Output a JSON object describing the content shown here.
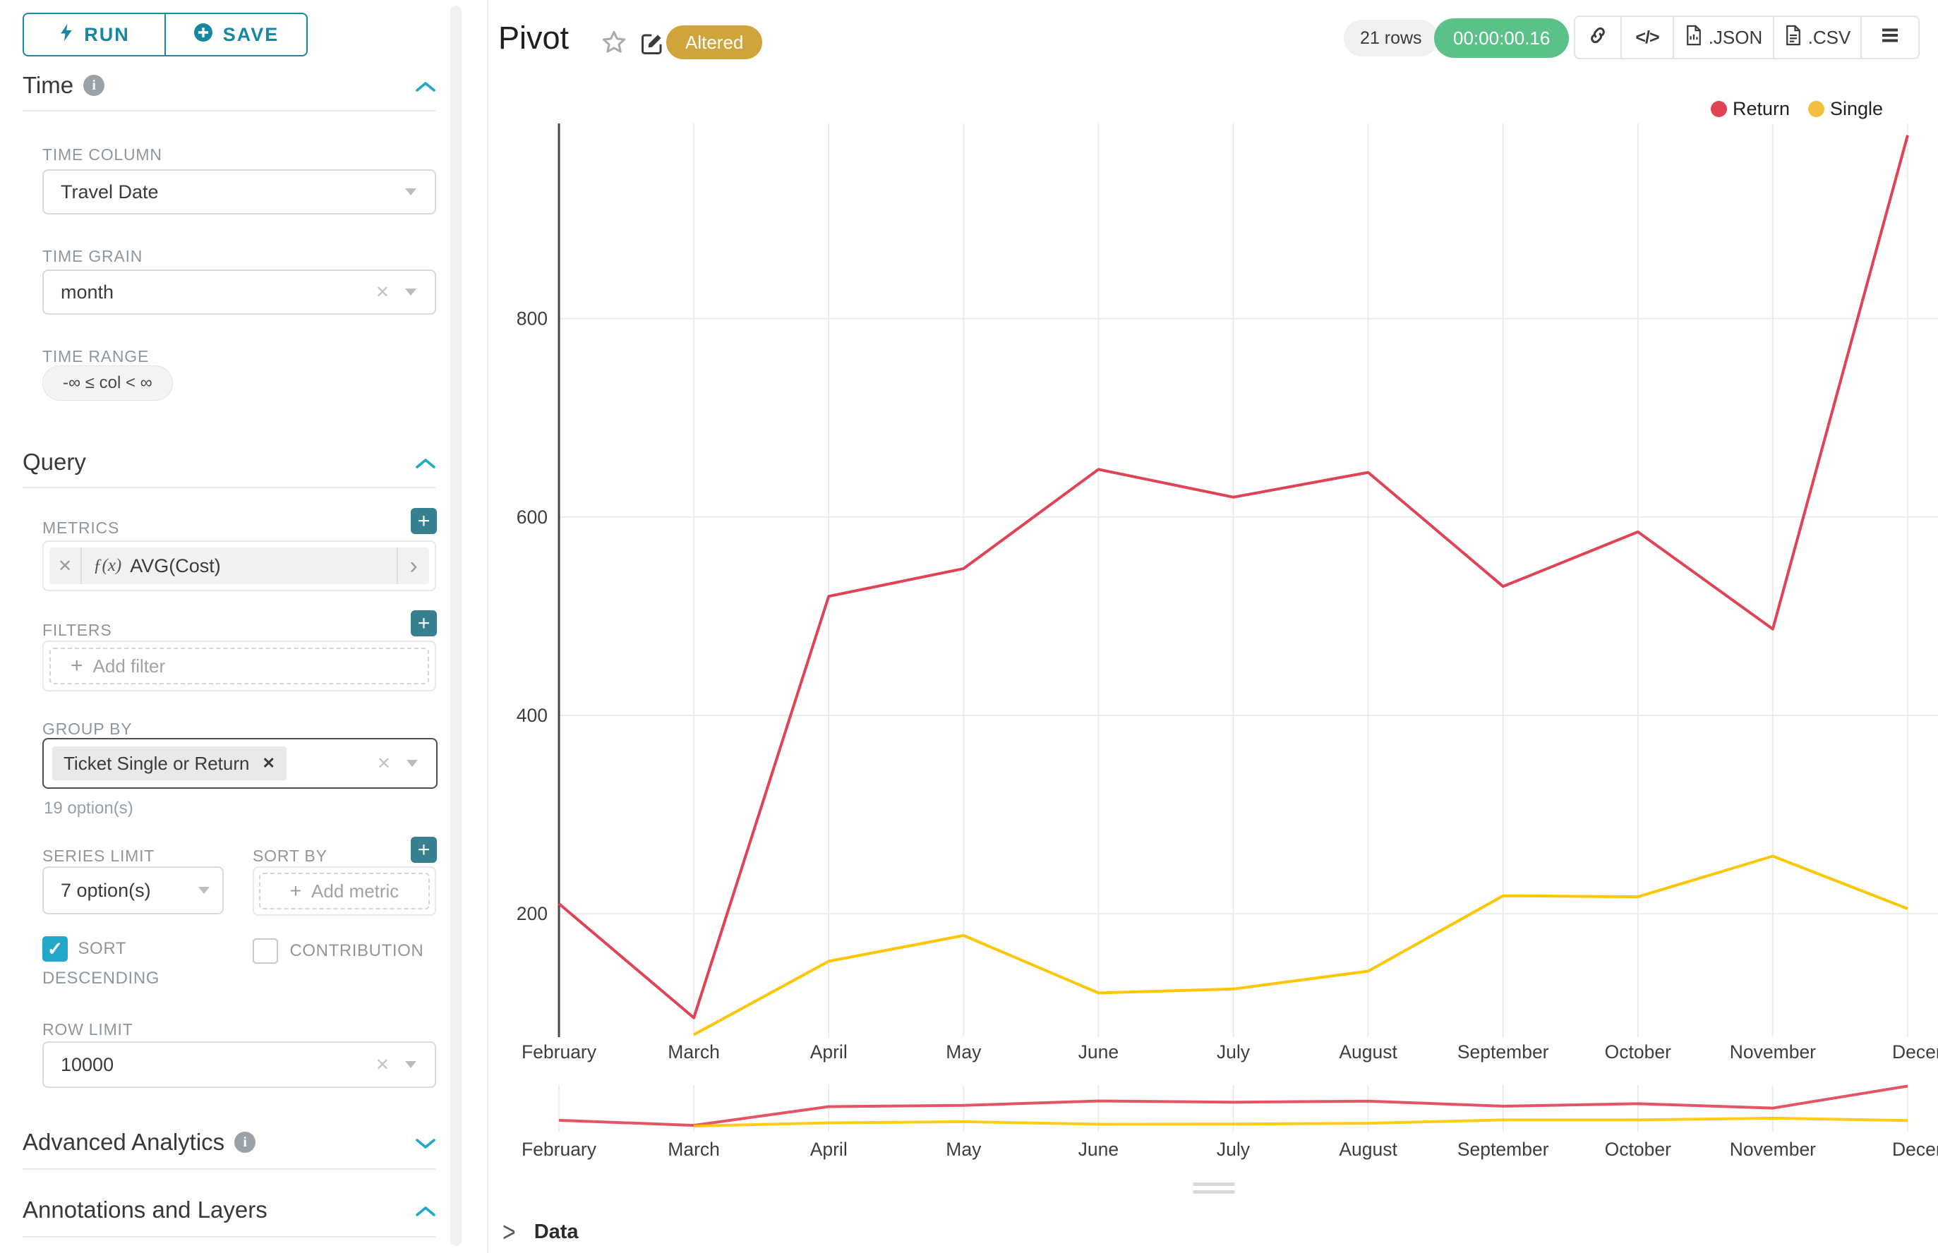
{
  "sidebar": {
    "run_label": "RUN",
    "save_label": "SAVE",
    "time_section": "Time",
    "query_section": "Query",
    "advanced_section": "Advanced Analytics",
    "annotations_section": "Annotations and Layers",
    "time_column": {
      "label": "TIME COLUMN",
      "value": "Travel Date"
    },
    "time_grain": {
      "label": "TIME GRAIN",
      "value": "month"
    },
    "time_range": {
      "label": "TIME RANGE",
      "value": "-∞ ≤ col < ∞"
    },
    "metrics": {
      "label": "METRICS",
      "fx": "ƒ(x)",
      "value": "AVG(Cost)"
    },
    "filters": {
      "label": "FILTERS",
      "placeholder": "Add filter"
    },
    "group_by": {
      "label": "GROUP BY",
      "tag": "Ticket Single or Return",
      "hint": "19 option(s)"
    },
    "series_limit": {
      "label": "SERIES LIMIT",
      "value": "7 option(s)"
    },
    "sort_by": {
      "label": "SORT BY",
      "placeholder": "Add metric"
    },
    "sort_descending": {
      "label": "SORT DESCENDING",
      "checked": true
    },
    "contribution": {
      "label": "CONTRIBUTION",
      "checked": false
    },
    "row_limit": {
      "label": "ROW LIMIT",
      "value": "10000"
    }
  },
  "header": {
    "title": "Pivot",
    "altered_badge": "Altered",
    "rows_badge": "21 rows",
    "duration_badge": "00:00:00.16",
    "export_json": ".JSON",
    "export_csv": ".CSV"
  },
  "chart_data": {
    "type": "line",
    "x": [
      "February",
      "March",
      "April",
      "May",
      "June",
      "July",
      "August",
      "September",
      "October",
      "November",
      "December"
    ],
    "series": [
      {
        "name": "Return",
        "color": "#e04355",
        "values": [
          210,
          95,
          520,
          548,
          648,
          620,
          645,
          530,
          585,
          487,
          985
        ]
      },
      {
        "name": "Single",
        "color": "#fcc700",
        "values": [
          null,
          78,
          152,
          178,
          120,
          124,
          142,
          218,
          217,
          258,
          205
        ]
      }
    ],
    "title": "Pivot",
    "xlabel": "",
    "ylabel": "",
    "yticks": [
      200,
      400,
      600,
      800
    ],
    "ylim": [
      60,
      1000
    ],
    "grid": true,
    "legend_position": "top-right",
    "has_preview_strip": true
  },
  "footer": {
    "data_label": "Data"
  },
  "colors": {
    "accent": "#20a7c9",
    "button_teal": "#1786a3",
    "plus_button": "#37808f",
    "return_series": "#e04355",
    "single_series": "#fcc700",
    "altered_badge_bg": "#cfa43b",
    "timer_badge_bg": "#5ac189",
    "grid_line": "#e9e9e9",
    "axis_line": "#454545"
  }
}
